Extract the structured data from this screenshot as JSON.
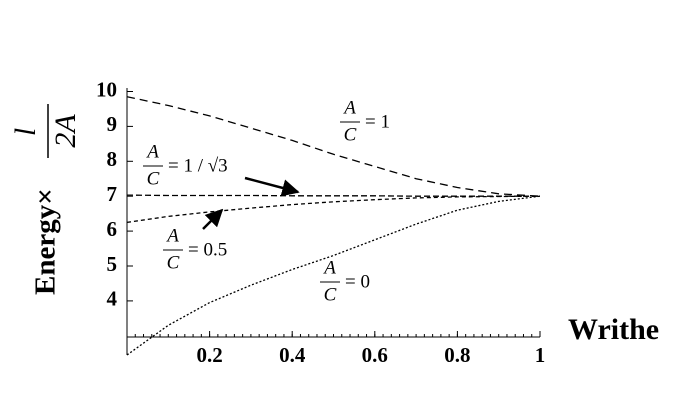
{
  "chart_data": {
    "type": "line",
    "y_label_text": "Energy×",
    "y_label_num": "l",
    "y_label_den": "2A",
    "x_label": "Writhe",
    "x": [
      0,
      0.1,
      0.2,
      0.3,
      0.4,
      0.5,
      0.6,
      0.7,
      0.8,
      0.9,
      1
    ],
    "xlim": [
      0,
      1
    ],
    "xticks": [
      0.2,
      0.4,
      0.6,
      0.8,
      1
    ],
    "ylim": [
      2.45,
      10.1
    ],
    "yticks": [
      4,
      5,
      6,
      7,
      8,
      9,
      10
    ],
    "series": [
      {
        "label_num": "A",
        "label_den": "C",
        "label_rhs": "= 1",
        "color": "#000",
        "dash": "8,5",
        "values": [
          9.85,
          9.6,
          9.3,
          8.95,
          8.6,
          8.2,
          7.85,
          7.5,
          7.25,
          7.07,
          7
        ]
      },
      {
        "label_num": "A",
        "label_den": "C",
        "label_rhs": "= 1 / √3",
        "color": "#000",
        "dash": "6,3",
        "values": [
          7.03,
          7.02,
          7.02,
          7.02,
          7.01,
          7.01,
          7.01,
          7.0,
          7.0,
          7.0,
          7
        ]
      },
      {
        "label_num": "A",
        "label_den": "C",
        "label_rhs": "= 0.5",
        "color": "#000",
        "dash": "4,3",
        "values": [
          6.25,
          6.42,
          6.55,
          6.66,
          6.76,
          6.84,
          6.9,
          6.95,
          6.98,
          6.99,
          7
        ]
      },
      {
        "label_num": "A",
        "label_den": "C",
        "label_rhs": "= 0",
        "color": "#000",
        "dash": "2,2",
        "values": [
          2.45,
          3.3,
          3.95,
          4.45,
          4.9,
          5.3,
          5.75,
          6.2,
          6.6,
          6.85,
          7
        ]
      }
    ]
  }
}
